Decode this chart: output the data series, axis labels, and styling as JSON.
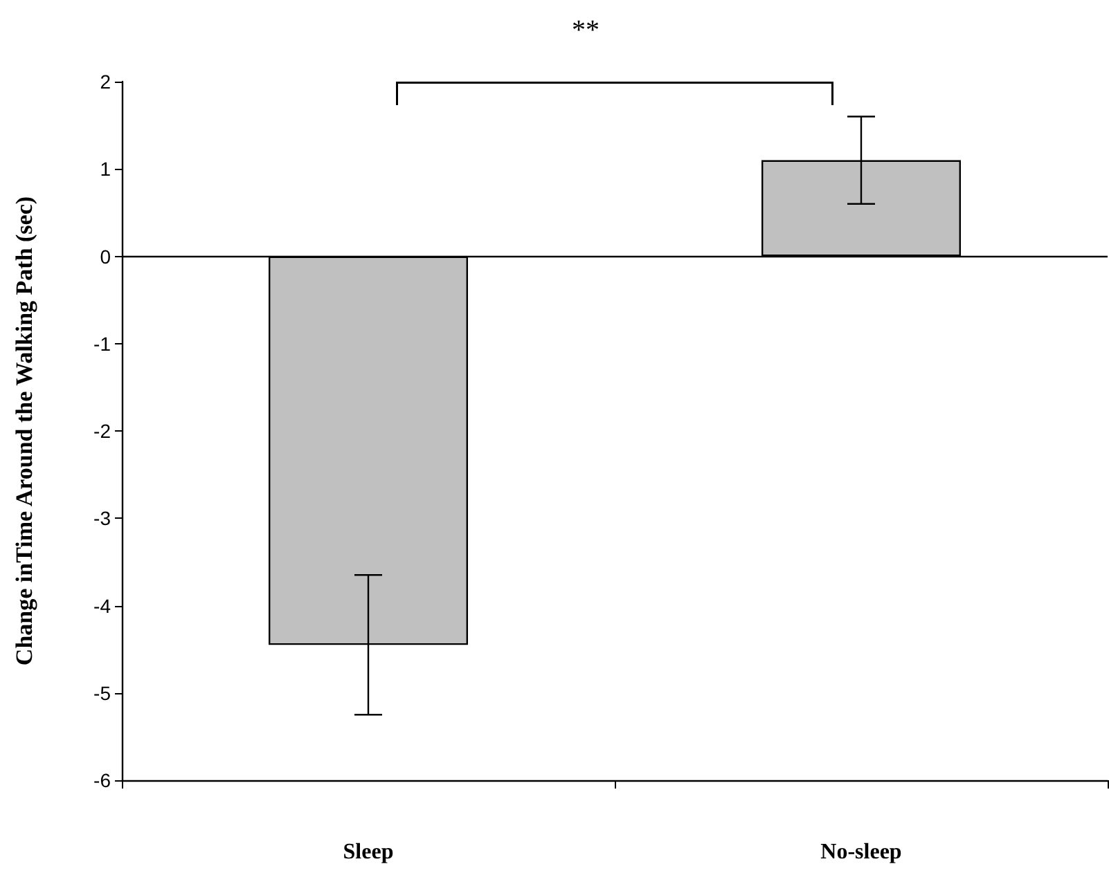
{
  "chart_data": {
    "type": "bar",
    "ylabel": "Change inTime Around the Walking Path (sec)",
    "categories": [
      "Sleep",
      "No-sleep"
    ],
    "values": [
      -4.45,
      1.1
    ],
    "errors": [
      0.8,
      0.5
    ],
    "color": "#c0c0c0",
    "ylim": [
      -6,
      2
    ],
    "yticks": [
      -6,
      -5,
      -4,
      -3,
      -2,
      -1,
      0,
      1,
      2
    ],
    "grid": false,
    "ref_lines": [
      {
        "axis": "y",
        "value": 0,
        "color": "#000000"
      }
    ],
    "annotations": [
      "**"
    ]
  }
}
